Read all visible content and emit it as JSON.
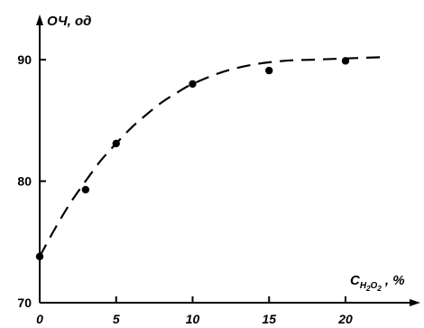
{
  "chart_data": {
    "type": "scatter",
    "title": "",
    "ylabel": "ОЧ, од",
    "xlabel": {
      "main": "C",
      "sub1": "H",
      "sub2": "2",
      "sub3": "O",
      "sub4": "2",
      "tail": " , %"
    },
    "x_ticks": [
      "0",
      "5",
      "10",
      "15",
      "20"
    ],
    "y_ticks": [
      "70",
      "80",
      "90"
    ],
    "xlim": [
      0,
      22
    ],
    "ylim": [
      70,
      92.5
    ],
    "grid": false,
    "legend": "none",
    "series": [
      {
        "marker": "dot",
        "points": [
          {
            "x": 0,
            "y": 73.8
          },
          {
            "x": 3,
            "y": 79.3
          },
          {
            "x": 5,
            "y": 83.1
          },
          {
            "x": 10,
            "y": 88.0
          },
          {
            "x": 15,
            "y": 89.1
          },
          {
            "x": 20,
            "y": 89.9
          }
        ]
      }
    ],
    "trend_line": {
      "style": "dashed",
      "points": [
        {
          "x": 0,
          "y": 73.8
        },
        {
          "x": 1,
          "y": 76.1
        },
        {
          "x": 2,
          "y": 78.2
        },
        {
          "x": 3,
          "y": 80.0
        },
        {
          "x": 4,
          "y": 81.7
        },
        {
          "x": 5,
          "y": 83.1
        },
        {
          "x": 6,
          "y": 84.4
        },
        {
          "x": 7,
          "y": 85.5
        },
        {
          "x": 8,
          "y": 86.5
        },
        {
          "x": 9,
          "y": 87.3
        },
        {
          "x": 10,
          "y": 88.0
        },
        {
          "x": 12,
          "y": 89.0
        },
        {
          "x": 14,
          "y": 89.6
        },
        {
          "x": 16,
          "y": 89.9
        },
        {
          "x": 18,
          "y": 90.0
        },
        {
          "x": 20,
          "y": 90.1
        },
        {
          "x": 22.4,
          "y": 90.2
        }
      ]
    }
  }
}
